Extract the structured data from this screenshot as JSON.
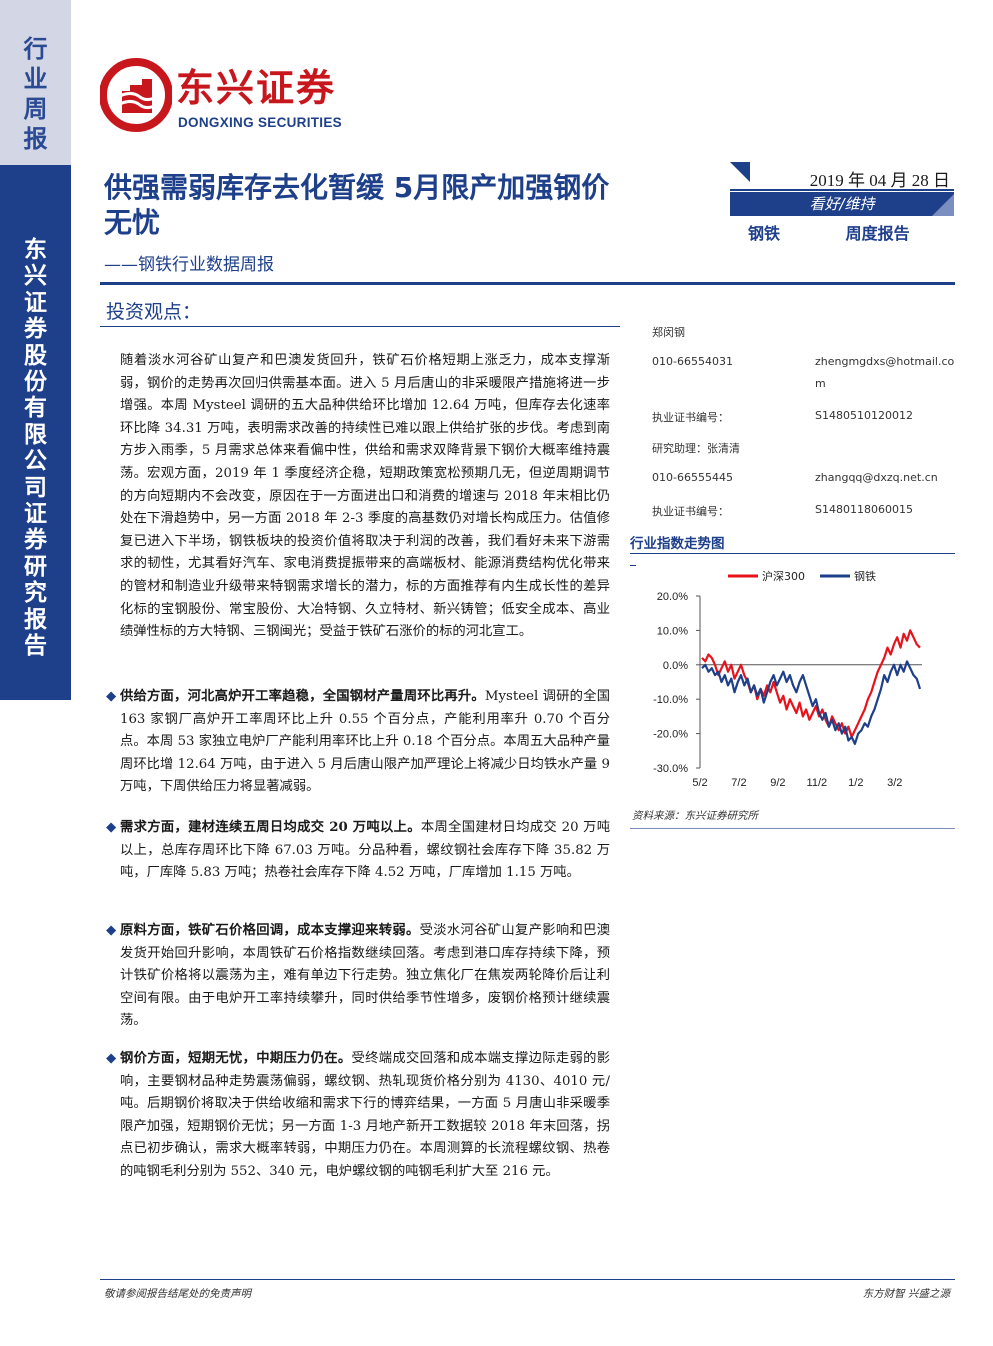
{
  "sidebar": {
    "top_label": [
      "行",
      "业",
      "周",
      "报"
    ],
    "company_vertical": [
      "东",
      "兴",
      "证",
      "券",
      "股",
      "份",
      "有",
      "限",
      "公",
      "司",
      "证",
      "券",
      "研",
      "究",
      "报",
      "告"
    ]
  },
  "logo": {
    "cn": "东兴证券",
    "en": "DONGXING SECURITIES"
  },
  "header": {
    "title": "供强需弱库存去化暂缓 5月限产加强钢价无忧",
    "subtitle": "——钢铁行业数据周报",
    "date": "2019 年 04 月 28 日",
    "rating": "看好/维持",
    "tag_industry": "钢铁",
    "tag_type": "周度报告"
  },
  "section": {
    "heading": "投资观点："
  },
  "body": {
    "intro": "随着淡水河谷矿山复产和巴澳发货回升，铁矿石价格短期上涨乏力，成本支撑渐弱，钢价的走势再次回归供需基本面。进入 5 月后唐山的非采暖限产措施将进一步增强。本周 Mysteel 调研的五大品种供给环比增加 12.64 万吨，但库存去化速率环比降 34.31 万吨，表明需求改善的持续性已难以跟上供给扩张的步伐。考虑到南方步入雨季，5 月需求总体来看偏中性，供给和需求双降背景下钢价大概率维持震荡。宏观方面，2019 年 1 季度经济企稳，短期政策宽松预期几无，但逆周期调节的方向短期内不会改变，原因在于一方面进出口和消费的增速与 2018 年末相比仍处在下滑趋势中，另一方面 2018 年 2-3 季度的高基数仍对增长构成压力。估值修复已进入下半场，钢铁板块的投资价值将取决于利润的改善，我们看好未来下游需求的韧性，尤其看好汽车、家电消费提振带来的高端板材、能源消费结构优化带来的管材和制造业升级带来特钢需求增长的潜力，标的方面推荐有内生成长性的差异化标的宝钢股份、常宝股份、大冶特钢、久立特材、新兴铸管；低安全成本、高业绩弹性标的方大特钢、三钢闽光；受益于铁矿石涨价的标的河北宣工。",
    "bullets": [
      {
        "bold": "供给方面，河北高炉开工率趋稳，全国钢材产量周环比再升。",
        "text": "Mysteel 调研的全国 163 家钢厂高炉开工率周环比上升 0.55 个百分点，产能利用率升 0.70 个百分点。本周 53 家独立电炉厂产能利用率环比上升 0.18 个百分点。本周五大品种产量周环比增 12.64 万吨，由于进入 5 月后唐山限产加严理论上将减少日均铁水产量 9 万吨，下周供给压力将显著减弱。"
      },
      {
        "bold": "需求方面，建材连续五周日均成交 20 万吨以上。",
        "text": "本周全国建材日均成交 20 万吨以上，总库存周环比下降 67.03 万吨。分品种看，螺纹钢社会库存下降 35.82 万吨，厂库降 5.83 万吨；热卷社会库存下降 4.52 万吨，厂库增加 1.15 万吨。"
      },
      {
        "bold": "原料方面，铁矿石价格回调，成本支撑迎来转弱。",
        "text": "受淡水河谷矿山复产影响和巴澳发货开始回升影响，本周铁矿石价格指数继续回落。考虑到港口库存持续下降，预计铁矿价格将以震荡为主，难有单边下行走势。独立焦化厂在焦炭两轮降价后让利空间有限。由于电炉开工率持续攀升，同时供给季节性增多，废钢价格预计继续震荡。"
      },
      {
        "bold": "钢价方面，短期无忧，中期压力仍在。",
        "text": "受终端成交回落和成本端支撑边际走弱的影响，主要钢材品种走势震荡偏弱，螺纹钢、热轧现货价格分别为 4130、4010 元/吨。后期钢价将取决于供给收缩和需求下行的博弈结果，一方面 5 月唐山非采暖季限产加强，短期钢价无忧；另一方面 1-3 月地产新开工数据较 2018 年末回落，拐点已初步确认，需求大概率转弱，中期压力仍在。本周测算的长流程螺纹钢、热卷的吨钢毛利分别为 552、340 元，电炉螺纹钢的吨钢毛利扩大至 216 元。"
      }
    ]
  },
  "analysts": {
    "a1_name": "郑闵钢",
    "a1_phone": "010-66554031",
    "a1_email_1": "zhengmgdxs@hotmail.co",
    "a1_email_2": "m",
    "a1_cert_label": "执业证书编号：",
    "a1_cert": "S1480510120012",
    "a2_name": "研究助理：张清清",
    "a2_phone": "010-66555445",
    "a2_email": "zhangqq@dxzq.net.cn",
    "a2_cert_label": "执业证书编号：",
    "a2_cert": "S1480118060015"
  },
  "chart_title": "行业指数走势图",
  "chart_source": "资料来源：东兴证券研究所",
  "chart_data": {
    "type": "line",
    "x_tick_labels": [
      "5/2",
      "7/2",
      "9/2",
      "11/2",
      "1/2",
      "3/2"
    ],
    "y_tick_labels": [
      "20.0%",
      "10.0%",
      "0.0%",
      "-10.0%",
      "-20.0%",
      "-30.0%"
    ],
    "ylim": [
      -30,
      20
    ],
    "x_range": [
      "2018-05-02",
      "2019-04-26"
    ],
    "legend_position": "top",
    "series": [
      {
        "name": "沪深300",
        "color": "#e8121b",
        "values": [
          2,
          1,
          3,
          2,
          0,
          -3,
          -1,
          1,
          -2,
          0,
          -4,
          -2,
          0,
          -3,
          -5,
          -8,
          -6,
          -10,
          -7,
          -9,
          -6,
          -8,
          -5,
          -8,
          -11,
          -9,
          -13,
          -10,
          -12,
          -14,
          -11,
          -15,
          -13,
          -16,
          -14,
          -12,
          -15,
          -13,
          -16,
          -18,
          -15,
          -17,
          -19,
          -17,
          -20,
          -18,
          -21,
          -19,
          -17,
          -15,
          -13,
          -10,
          -8,
          -5,
          -2,
          0,
          2,
          5,
          3,
          6,
          8,
          5,
          9,
          7,
          10,
          8,
          6,
          5
        ]
      },
      {
        "name": "钢铁",
        "color": "#1e3f8a",
        "values": [
          -1,
          0,
          -2,
          -1,
          -3,
          -2,
          -5,
          -3,
          -6,
          -4,
          -8,
          -5,
          -3,
          -6,
          -4,
          -8,
          -6,
          -9,
          -7,
          -11,
          -8,
          -5,
          -3,
          -6,
          -4,
          -2,
          -5,
          -3,
          -6,
          -8,
          -5,
          -3,
          -6,
          -9,
          -12,
          -10,
          -14,
          -16,
          -14,
          -18,
          -16,
          -19,
          -17,
          -20,
          -18,
          -22,
          -21,
          -23,
          -20,
          -19,
          -17,
          -18,
          -15,
          -13,
          -10,
          -7,
          -3,
          -5,
          -2,
          0,
          -3,
          0,
          -2,
          1,
          -1,
          -3,
          -4,
          -7
        ]
      }
    ]
  },
  "footer": {
    "left": "敬请参阅报告结尾处的免责声明",
    "right": "东方财智 兴盛之源"
  }
}
